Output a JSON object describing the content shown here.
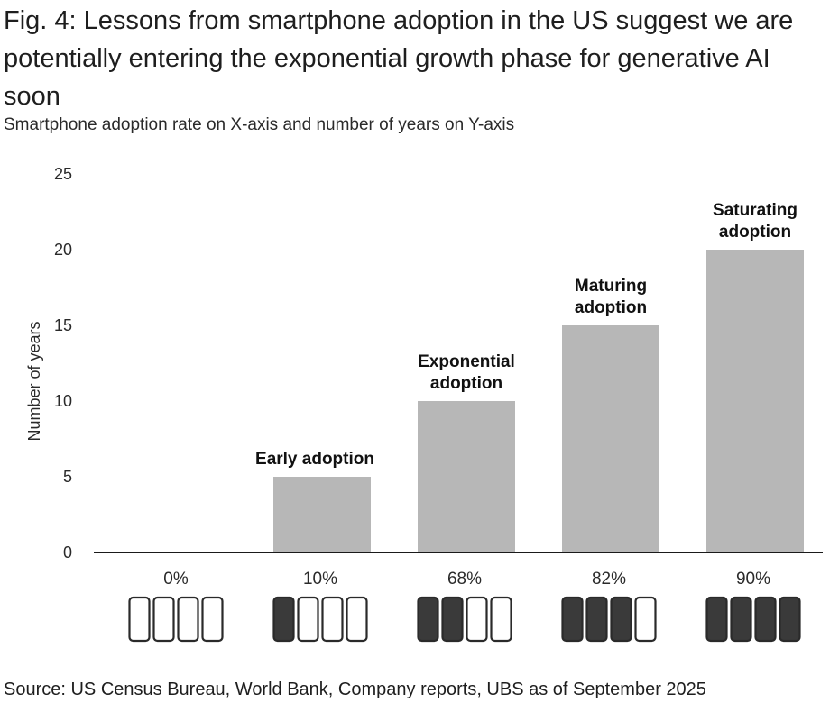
{
  "title": "Fig. 4: Lessons from smartphone adoption in the US suggest we are potentially entering the exponential growth phase for generative AI soon",
  "subtitle": "Smartphone adoption rate on X-axis and number of years on Y-axis",
  "source": "Source: US Census Bureau, World Bank, Company reports, UBS as of September 2025",
  "colors": {
    "bar": "#b7b7b7",
    "axis": "#1a1a1a",
    "filled_phone": "#3a3a3a",
    "empty_phone": "#ffffff"
  },
  "chart_data": {
    "type": "bar",
    "categories": [
      "0%",
      "10%",
      "68%",
      "82%",
      "90%"
    ],
    "values": [
      0,
      5,
      10,
      15,
      20
    ],
    "annotations": [
      {
        "category": "0%",
        "lines": []
      },
      {
        "category": "10%",
        "lines": [
          "Early adoption"
        ]
      },
      {
        "category": "68%",
        "lines": [
          "Exponential",
          "adoption"
        ]
      },
      {
        "category": "82%",
        "lines": [
          "Maturing",
          "adoption"
        ]
      },
      {
        "category": "90%",
        "lines": [
          "Saturating",
          "adoption"
        ]
      }
    ],
    "phones_filled": [
      0,
      1,
      2,
      3,
      4
    ],
    "phones_total": 4,
    "ylabel": "Number of years",
    "xlabel": "",
    "ylim": [
      0,
      25
    ],
    "yticks": [
      0,
      5,
      10,
      15,
      20,
      25
    ],
    "grid": false,
    "legend": "none"
  }
}
